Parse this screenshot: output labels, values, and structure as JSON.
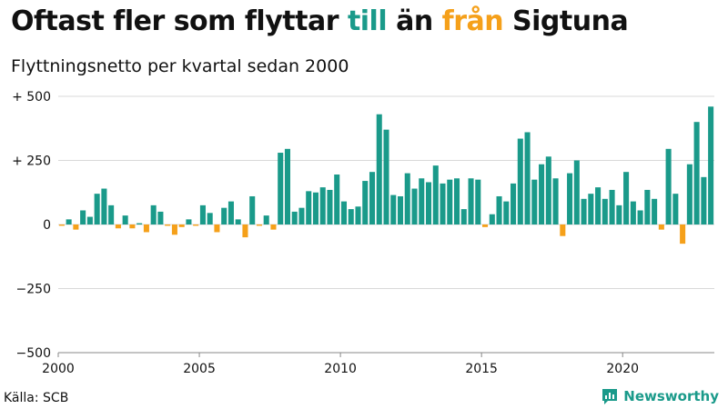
{
  "title": {
    "part1": "Oftast fler som flyttar ",
    "word_pos": "till",
    "part2": " än ",
    "word_neg": "från",
    "part3": " Sigtuna"
  },
  "subtitle": "Flyttningsnetto per kvartal sedan 2000",
  "source": "Källa: SCB",
  "brand": {
    "name": "Newsworthy",
    "icon": "chart-bubble-icon"
  },
  "colors": {
    "positive": "#1a9a8a",
    "negative": "#f5a01a",
    "grid": "#d9d9d9"
  },
  "chart_data": {
    "type": "bar",
    "x_start": 2000,
    "period": "quarter",
    "xlim": [
      2000,
      2023.25
    ],
    "ylim": [
      -500,
      500
    ],
    "y_ticks": [
      {
        "value": 500,
        "label": "+ 500"
      },
      {
        "value": 250,
        "label": "+ 250"
      },
      {
        "value": 0,
        "label": "0"
      },
      {
        "value": -250,
        "label": "−250"
      },
      {
        "value": -500,
        "label": "−500"
      }
    ],
    "x_ticks": [
      {
        "value": 2000,
        "label": "2000"
      },
      {
        "value": 2005,
        "label": "2005"
      },
      {
        "value": 2010,
        "label": "2010"
      },
      {
        "value": 2015,
        "label": "2015"
      },
      {
        "value": 2020,
        "label": "2020"
      }
    ],
    "grid": true,
    "values": [
      -5,
      20,
      -20,
      55,
      30,
      120,
      140,
      75,
      -15,
      35,
      -15,
      5,
      -30,
      75,
      50,
      -5,
      -40,
      -10,
      20,
      -5,
      75,
      45,
      -30,
      65,
      90,
      20,
      -50,
      110,
      -5,
      35,
      -20,
      280,
      295,
      50,
      65,
      130,
      125,
      145,
      135,
      195,
      90,
      60,
      70,
      170,
      205,
      430,
      370,
      115,
      110,
      200,
      140,
      180,
      165,
      230,
      160,
      175,
      180,
      60,
      180,
      175,
      -10,
      40,
      110,
      90,
      160,
      335,
      360,
      175,
      235,
      265,
      180,
      -45,
      200,
      250,
      100,
      120,
      145,
      100,
      135,
      75,
      205,
      90,
      55,
      135,
      100,
      -20,
      295,
      120,
      -75,
      235,
      400,
      185,
      460
    ]
  }
}
